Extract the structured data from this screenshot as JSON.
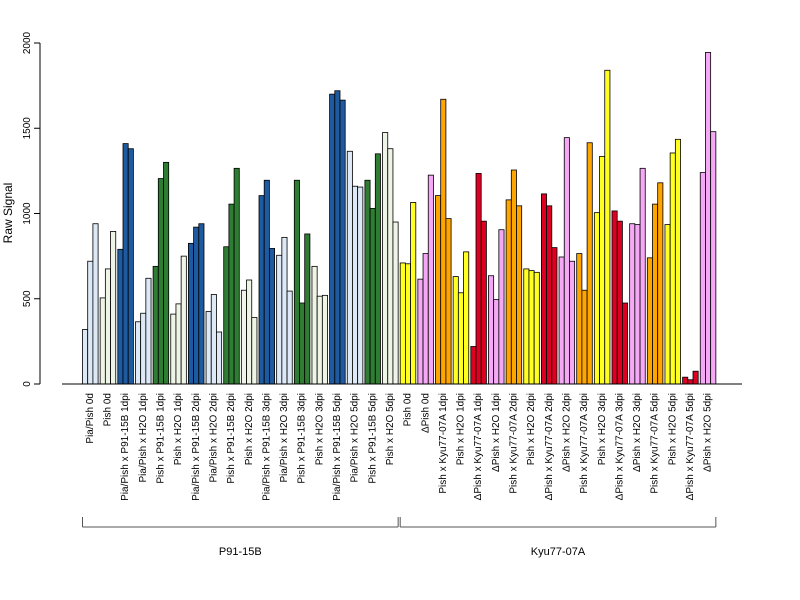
{
  "chart_data": {
    "type": "bar",
    "ylabel": "Raw Signal",
    "ylim": [
      0,
      2000
    ],
    "yticks": [
      0,
      500,
      1000,
      1500,
      2000
    ],
    "grid": false,
    "groups": [
      {
        "name": "P91-15B",
        "categories": [
          {
            "label": "Pia/Pish 0d",
            "color": "#dde9f7",
            "values": [
              320,
              720,
              940
            ]
          },
          {
            "label": "Pish 0d",
            "color": "#eef5e6",
            "values": [
              505,
              675,
              895
            ]
          },
          {
            "label": "Pia/Pish x P91-15B 1dpi",
            "color": "#1e5aa0",
            "values": [
              790,
              1410,
              1380
            ]
          },
          {
            "label": "Pia/Pish x H2O 1dpi",
            "color": "#dde9f7",
            "values": [
              365,
              415,
              620
            ]
          },
          {
            "label": "Pish x P91-15B 1dpi",
            "color": "#2e7d32",
            "values": [
              690,
              1205,
              1300
            ]
          },
          {
            "label": "Pish x H2O 1dpi",
            "color": "#eef5e6",
            "values": [
              410,
              470,
              750
            ]
          },
          {
            "label": "Pia/Pish x P91-15B 2dpi",
            "color": "#1e5aa0",
            "values": [
              825,
              920,
              940
            ]
          },
          {
            "label": "Pia/Pish x H2O 2dpi",
            "color": "#dde9f7",
            "values": [
              425,
              525,
              305
            ]
          },
          {
            "label": "Pish x P91-15B 2dpi",
            "color": "#2e7d32",
            "values": [
              805,
              1055,
              1265
            ]
          },
          {
            "label": "Pish x H2O 2dpi",
            "color": "#eef5e6",
            "values": [
              550,
              610,
              390
            ]
          },
          {
            "label": "Pia/Pish x P91-15B 3dpi",
            "color": "#1e5aa0",
            "values": [
              1105,
              1195,
              795
            ]
          },
          {
            "label": "Pia/Pish x H2O 3dpi",
            "color": "#dde9f7",
            "values": [
              755,
              860,
              545
            ]
          },
          {
            "label": "Pish x P91-15B 3dpi",
            "color": "#2e7d32",
            "values": [
              1195,
              475,
              880
            ]
          },
          {
            "label": "Pish x H2O 3dpi",
            "color": "#eef5e6",
            "values": [
              690,
              515,
              520
            ]
          },
          {
            "label": "Pia/Pish x P91-15B 5dpi",
            "color": "#1e5aa0",
            "values": [
              1700,
              1720,
              1665
            ]
          },
          {
            "label": "Pia/Pish x H2O 5dpi",
            "color": "#dde9f7",
            "values": [
              1365,
              1160,
              1155
            ]
          },
          {
            "label": "Pish x P91-15B 5dpi",
            "color": "#2e7d32",
            "values": [
              1195,
              1030,
              1350
            ]
          },
          {
            "label": "Pish x H2O 5dpi",
            "color": "#eef5e6",
            "values": [
              1475,
              1380,
              950
            ]
          }
        ]
      },
      {
        "name": "Kyu77-07A",
        "categories": [
          {
            "label": "Pish 0d",
            "color": "#ffff22",
            "values": [
              710,
              705,
              1065
            ]
          },
          {
            "label": "ΔPish 0d",
            "color": "#f5a8f5",
            "values": [
              615,
              765,
              1225
            ]
          },
          {
            "label": "Pish x Kyu77-07A 1dpi",
            "color": "#ffa500",
            "values": [
              1105,
              1670,
              970
            ]
          },
          {
            "label": "Pish x H2O 1dpi",
            "color": "#ffff22",
            "values": [
              630,
              535,
              775
            ]
          },
          {
            "label": "ΔPish x Kyu77-07A 1dpi",
            "color": "#dd0022",
            "values": [
              220,
              1235,
              955
            ]
          },
          {
            "label": "ΔPish x H2O 1dpi",
            "color": "#f5a8f5",
            "values": [
              635,
              495,
              905
            ]
          },
          {
            "label": "Pish x Kyu77-07A 2dpi",
            "color": "#ffa500",
            "values": [
              1080,
              1255,
              1045
            ]
          },
          {
            "label": "Pish x H2O 2dpi",
            "color": "#ffff22",
            "values": [
              675,
              665,
              655
            ]
          },
          {
            "label": "ΔPish x Kyu77-07A 2dpi",
            "color": "#dd0022",
            "values": [
              1115,
              1045,
              800
            ]
          },
          {
            "label": "ΔPish x H2O 2dpi",
            "color": "#f5a8f5",
            "values": [
              745,
              1445,
              720
            ]
          },
          {
            "label": "Pish x Kyu77-07A 3dpi",
            "color": "#ffa500",
            "values": [
              765,
              550,
              1415
            ]
          },
          {
            "label": "Pish x H2O 3dpi",
            "color": "#ffff22",
            "values": [
              1005,
              1335,
              1840
            ]
          },
          {
            "label": "ΔPish x Kyu77-07A 3dpi",
            "color": "#dd0022",
            "values": [
              1015,
              955,
              475
            ]
          },
          {
            "label": "ΔPish x H2O 3dpi",
            "color": "#f5a8f5",
            "values": [
              940,
              935,
              1265
            ]
          },
          {
            "label": "Pish x Kyu77-07A 5dpi",
            "color": "#ffa500",
            "values": [
              740,
              1055,
              1180
            ]
          },
          {
            "label": "Pish x H2O 5dpi",
            "color": "#ffff22",
            "values": [
              935,
              1355,
              1435
            ]
          },
          {
            "label": "ΔPish x Kyu77-07A 5dpi",
            "color": "#dd0022",
            "values": [
              40,
              25,
              75
            ]
          },
          {
            "label": "ΔPish x H2O 5dpi",
            "color": "#f5a8f5",
            "values": [
              1240,
              1945,
              1480
            ]
          }
        ]
      }
    ]
  }
}
